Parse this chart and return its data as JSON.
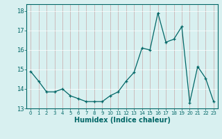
{
  "x": [
    0,
    1,
    2,
    3,
    4,
    5,
    6,
    7,
    8,
    9,
    10,
    11,
    12,
    13,
    14,
    15,
    16,
    17,
    18,
    19,
    20,
    21,
    22,
    23
  ],
  "y": [
    14.9,
    14.4,
    13.85,
    13.85,
    14.0,
    13.65,
    13.5,
    13.35,
    13.35,
    13.35,
    13.65,
    13.85,
    14.4,
    14.85,
    16.1,
    16.0,
    17.9,
    16.4,
    16.55,
    17.2,
    13.3,
    15.15,
    14.55,
    13.35
  ],
  "xlabel": "Humidex (Indice chaleur)",
  "xlim": [
    -0.5,
    23.5
  ],
  "ylim": [
    13.0,
    18.35
  ],
  "yticks": [
    13,
    14,
    15,
    16,
    17,
    18
  ],
  "xticks": [
    0,
    1,
    2,
    3,
    4,
    5,
    6,
    7,
    8,
    9,
    10,
    11,
    12,
    13,
    14,
    15,
    16,
    17,
    18,
    19,
    20,
    21,
    22,
    23
  ],
  "line_color": "#006666",
  "marker": "+",
  "bg_color": "#d8f0f0",
  "grid_color": "#b8dada",
  "spine_color": "#006666",
  "tick_color": "#006666"
}
